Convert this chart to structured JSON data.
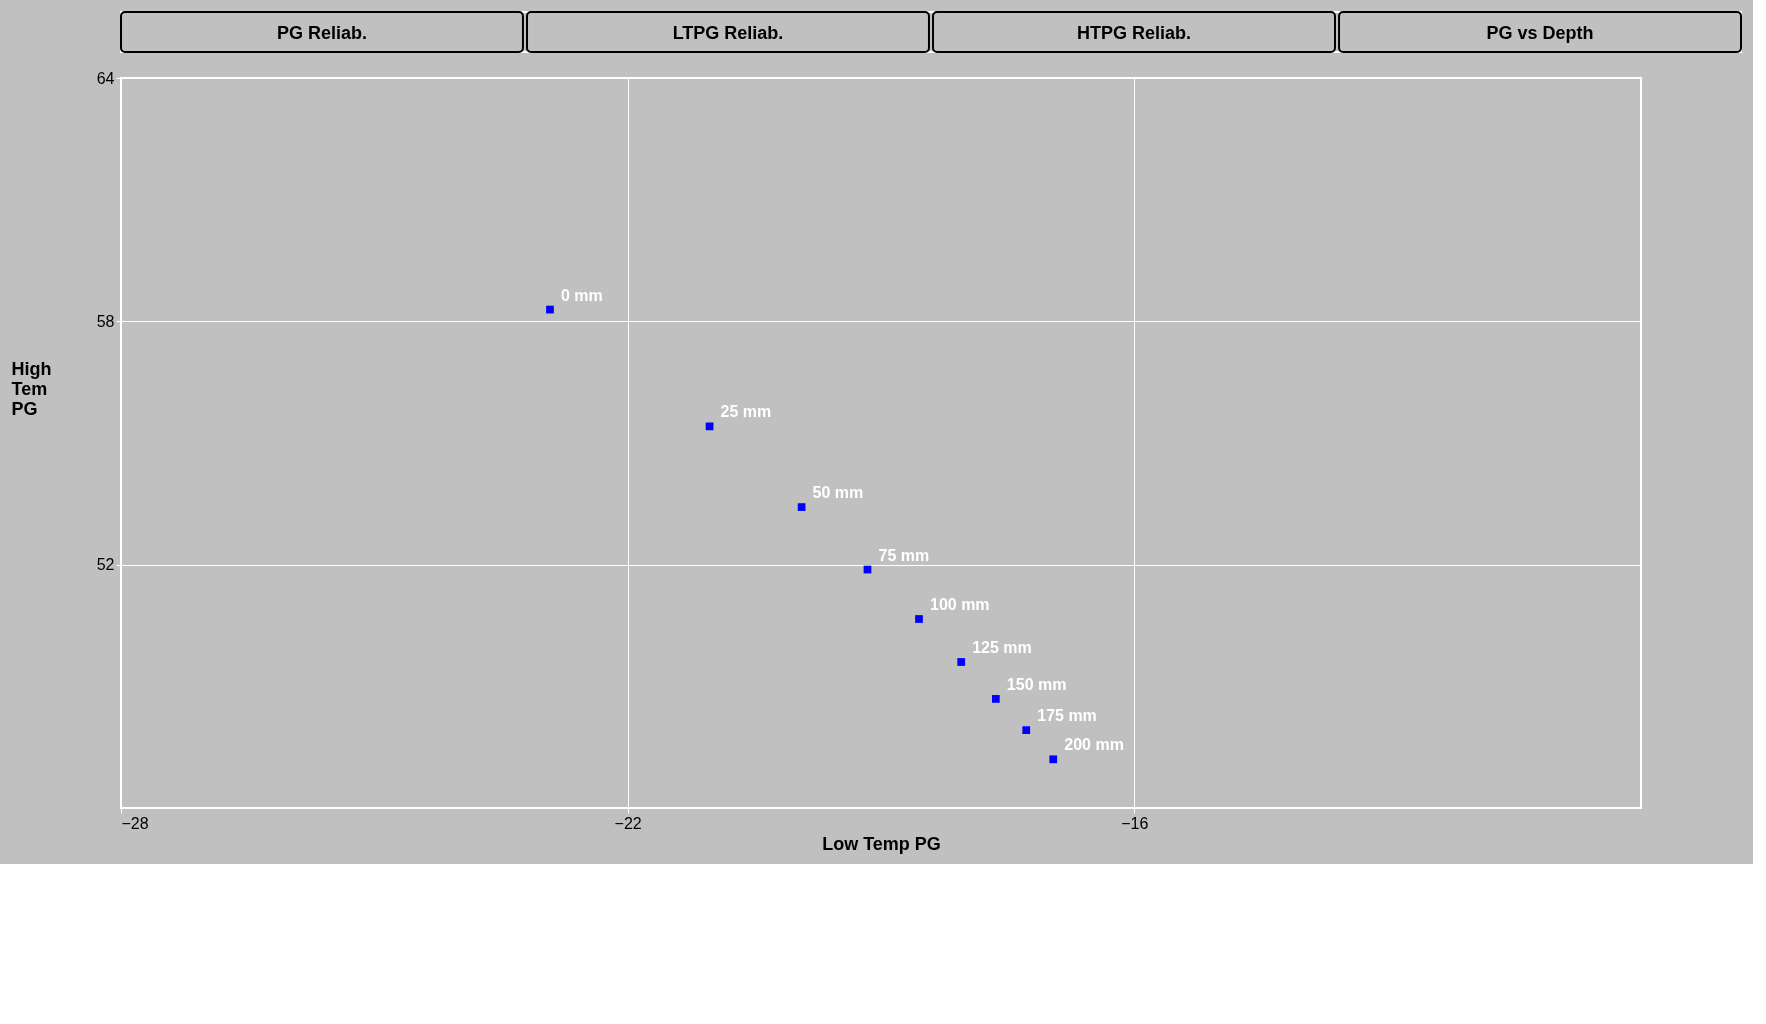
{
  "chart_data": {
    "type": "scatter",
    "annotations": [
      "PG Reliab.",
      "LTPG Reliab.",
      "HTPG Reliab.",
      "PG vs Depth",
      {
        "text": "0 mm",
        "x": -22.92,
        "y": 58.29
      },
      {
        "text": "25 mm",
        "x": -21.03,
        "y": 55.41
      },
      {
        "text": "50 mm",
        "x": -19.94,
        "y": 53.42
      },
      {
        "text": "75 mm",
        "x": -19.16,
        "y": 51.88
      },
      {
        "text": "100 mm",
        "x": -18.55,
        "y": 50.66
      },
      {
        "text": "125 mm",
        "x": -18.05,
        "y": 49.6
      },
      {
        "text": "150 mm",
        "x": -17.64,
        "y": 48.69
      },
      {
        "text": "175 mm",
        "x": -17.28,
        "y": 47.92
      },
      {
        "text": "200 mm",
        "x": -16.96,
        "y": 47.2
      }
    ],
    "xlabel": "Low Temp PG",
    "ylabel": "High Tem PG",
    "x": [
      -22.92,
      -21.03,
      -19.94,
      -19.16,
      -18.55,
      -18.05,
      -17.64,
      -17.28,
      -16.96
    ],
    "series": [
      {
        "color": "#0000ff",
        "values": [
          58.29,
          55.41,
          53.42,
          51.88,
          50.66,
          49.6,
          48.69,
          47.92,
          47.2
        ]
      }
    ],
    "xlim": [
      -28,
      -10
    ],
    "xticks": [
      -28,
      -22,
      -16
    ],
    "ylim": [
      46,
      64
    ],
    "yticks": [
      64,
      58,
      52
    ],
    "grid": true,
    "marker": "square",
    "legend": false
  }
}
